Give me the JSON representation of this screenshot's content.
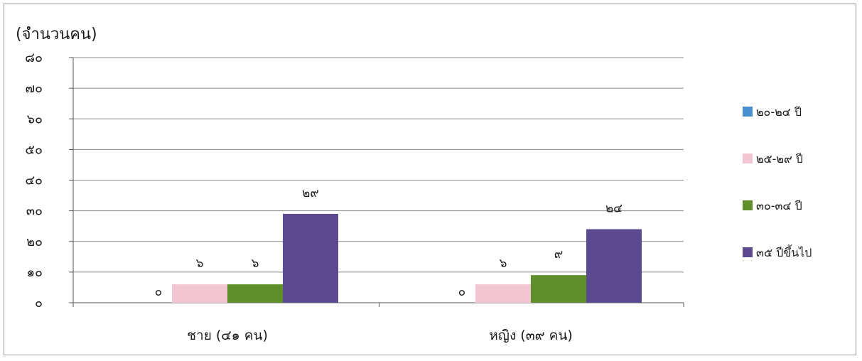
{
  "chart_data": {
    "type": "bar",
    "ylabel": "(จำนวนคน)",
    "ylim": [
      0,
      80
    ],
    "yticks": [
      "๐",
      "๑๐",
      "๒๐",
      "๓๐",
      "๔๐",
      "๕๐",
      "๖๐",
      "๗๐",
      "๘๐"
    ],
    "categories": [
      "ชาย (๔๑ คน)",
      "หญิง (๓๙ คน)"
    ],
    "series": [
      {
        "name": "๒๐-๒๔ ปี",
        "color": "#4a8fd0",
        "values": [
          0,
          0
        ],
        "labels": [
          "๐",
          "๐"
        ]
      },
      {
        "name": "๒๕-๒๙ ปี",
        "color": "#f3c6d4",
        "values": [
          6,
          6
        ],
        "labels": [
          "๖",
          "๖"
        ]
      },
      {
        "name": "๓๐-๓๔ ปี",
        "color": "#5f8f2a",
        "values": [
          6,
          9
        ],
        "labels": [
          "๖",
          "๙"
        ]
      },
      {
        "name": "๓๕ ปีขึ้นไป",
        "color": "#5b4a8e",
        "values": [
          29,
          24
        ],
        "labels": [
          "๒๙",
          "๒๔"
        ]
      }
    ],
    "grid": true,
    "legend": "right"
  }
}
